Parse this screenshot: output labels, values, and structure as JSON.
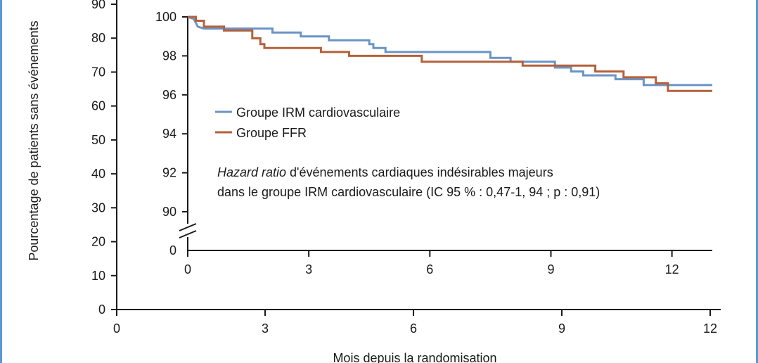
{
  "chart_data": [
    {
      "type": "line",
      "ylabel": "Pourcentage de patients sans événements",
      "xlabel": "Mois depuis la randomisation",
      "xlim": [
        0,
        12
      ],
      "ylim": [
        0,
        90
      ],
      "x_ticks": [
        "0",
        "3",
        "6",
        "9",
        "12"
      ],
      "y_ticks": [
        "0",
        "10",
        "20",
        "30",
        "40",
        "50",
        "60",
        "70",
        "80",
        "90"
      ],
      "grid": false
    },
    {
      "type": "line",
      "xlim": [
        0,
        13
      ],
      "ylim": [
        90,
        100
      ],
      "y_axis_break": true,
      "x_ticks": [
        "0",
        "3",
        "6",
        "9",
        "12"
      ],
      "y_ticks": [
        "0",
        "90",
        "92",
        "94",
        "96",
        "98",
        "100"
      ],
      "grid": false,
      "legend_position": "middle-left",
      "series": [
        {
          "name": "Groupe IRM cardiovasculaire",
          "color": "#6a94c7",
          "points": [
            [
              0,
              100
            ],
            [
              0.15,
              99.9
            ],
            [
              0.25,
              99.5
            ],
            [
              0.4,
              99.4
            ],
            [
              2.1,
              99.4
            ],
            [
              2.1,
              99.2
            ],
            [
              2.8,
              99.2
            ],
            [
              2.8,
              99.0
            ],
            [
              3.5,
              99.0
            ],
            [
              3.5,
              98.8
            ],
            [
              4.5,
              98.8
            ],
            [
              4.5,
              98.6
            ],
            [
              4.6,
              98.6
            ],
            [
              4.6,
              98.4
            ],
            [
              4.9,
              98.4
            ],
            [
              4.9,
              98.2
            ],
            [
              7.5,
              98.2
            ],
            [
              7.5,
              97.9
            ],
            [
              8.0,
              97.9
            ],
            [
              8.0,
              97.7
            ],
            [
              9.1,
              97.7
            ],
            [
              9.1,
              97.4
            ],
            [
              9.5,
              97.4
            ],
            [
              9.5,
              97.2
            ],
            [
              9.8,
              97.2
            ],
            [
              9.8,
              97.0
            ],
            [
              10.6,
              97.0
            ],
            [
              10.6,
              96.8
            ],
            [
              11.3,
              96.8
            ],
            [
              11.3,
              96.5
            ],
            [
              13,
              96.5
            ]
          ]
        },
        {
          "name": "Groupe FFR",
          "color": "#b5603a",
          "points": [
            [
              0,
              100
            ],
            [
              0.2,
              100
            ],
            [
              0.2,
              99.8
            ],
            [
              0.4,
              99.8
            ],
            [
              0.4,
              99.5
            ],
            [
              0.9,
              99.5
            ],
            [
              0.9,
              99.3
            ],
            [
              1.6,
              99.3
            ],
            [
              1.6,
              98.9
            ],
            [
              1.8,
              98.9
            ],
            [
              1.8,
              98.6
            ],
            [
              1.9,
              98.6
            ],
            [
              1.9,
              98.4
            ],
            [
              3.3,
              98.4
            ],
            [
              3.3,
              98.2
            ],
            [
              4.0,
              98.2
            ],
            [
              4.0,
              98.0
            ],
            [
              5.8,
              98.0
            ],
            [
              5.8,
              97.7
            ],
            [
              8.3,
              97.7
            ],
            [
              8.3,
              97.5
            ],
            [
              10.1,
              97.5
            ],
            [
              10.1,
              97.2
            ],
            [
              10.8,
              97.2
            ],
            [
              10.8,
              96.9
            ],
            [
              11.6,
              96.9
            ],
            [
              11.6,
              96.6
            ],
            [
              11.9,
              96.6
            ],
            [
              11.9,
              96.2
            ],
            [
              13,
              96.2
            ]
          ]
        }
      ],
      "annotation": {
        "italic": "Hazard ratio",
        "line1": " d'événements cardiaques indésirables majeurs",
        "line2": "dans le groupe IRM cardiovasculaire (IC 95 % : 0,47-1, 94 ; p : 0,91)"
      }
    }
  ]
}
